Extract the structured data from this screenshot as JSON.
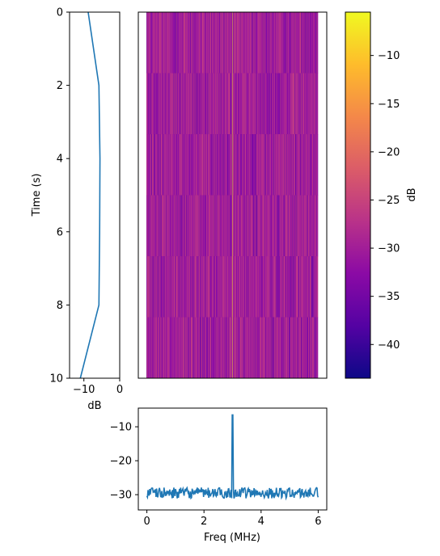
{
  "chart_data": [
    {
      "id": "time-profile",
      "type": "line",
      "xlabel": "dB",
      "ylabel": "Time (s)",
      "xlim": [
        -14,
        0
      ],
      "ylim": [
        10,
        0
      ],
      "xticks": [
        -10,
        0
      ],
      "xtick_labels": [
        "−10",
        "0"
      ],
      "yticks": [
        0,
        2,
        4,
        6,
        8,
        10
      ],
      "ytick_labels": [
        "0",
        "2",
        "4",
        "6",
        "8",
        "10"
      ],
      "series": [
        {
          "color": "#1f77b4",
          "x": [
            -8.8,
            -5.8,
            -5.5,
            -5.6,
            -5.8,
            -11.0
          ],
          "y": [
            0,
            2,
            4,
            6,
            8,
            10
          ]
        }
      ]
    },
    {
      "id": "spectrogram",
      "type": "heatmap",
      "colormap": "plasma",
      "x_range_mhz": [
        0,
        6
      ],
      "y_range_s": [
        0,
        10
      ],
      "time_rows": 6,
      "freq_columns": 512,
      "tone_mhz": 3.0,
      "tone_db": -7,
      "noise_floor_db": -30,
      "noise_min_db": -43,
      "noise_max_db": -26
    },
    {
      "id": "colorbar",
      "type": "colorbar",
      "label": "dB",
      "range": [
        -43.5,
        -5.5
      ],
      "ticks": [
        -10,
        -15,
        -20,
        -25,
        -30,
        -35,
        -40
      ],
      "tick_labels": [
        "−10",
        "−15",
        "−20",
        "−25",
        "−30",
        "−35",
        "−40"
      ]
    },
    {
      "id": "freq-profile",
      "type": "line",
      "xlabel": "Freq (MHz)",
      "ylabel": "",
      "xlim": [
        -0.3,
        6.3
      ],
      "ylim": [
        -34.5,
        -4.5
      ],
      "xticks": [
        0,
        2,
        4,
        6
      ],
      "xtick_labels": [
        "0",
        "2",
        "4",
        "6"
      ],
      "yticks": [
        -10,
        -20,
        -30
      ],
      "ytick_labels": [
        "−10",
        "−20",
        "−30"
      ],
      "series": [
        {
          "color": "#1f77b4",
          "x_range": [
            0,
            6
          ],
          "points": 300,
          "baseline_db": -29.5,
          "peak_x": 3.0,
          "peak_db": -6.5
        }
      ]
    }
  ]
}
